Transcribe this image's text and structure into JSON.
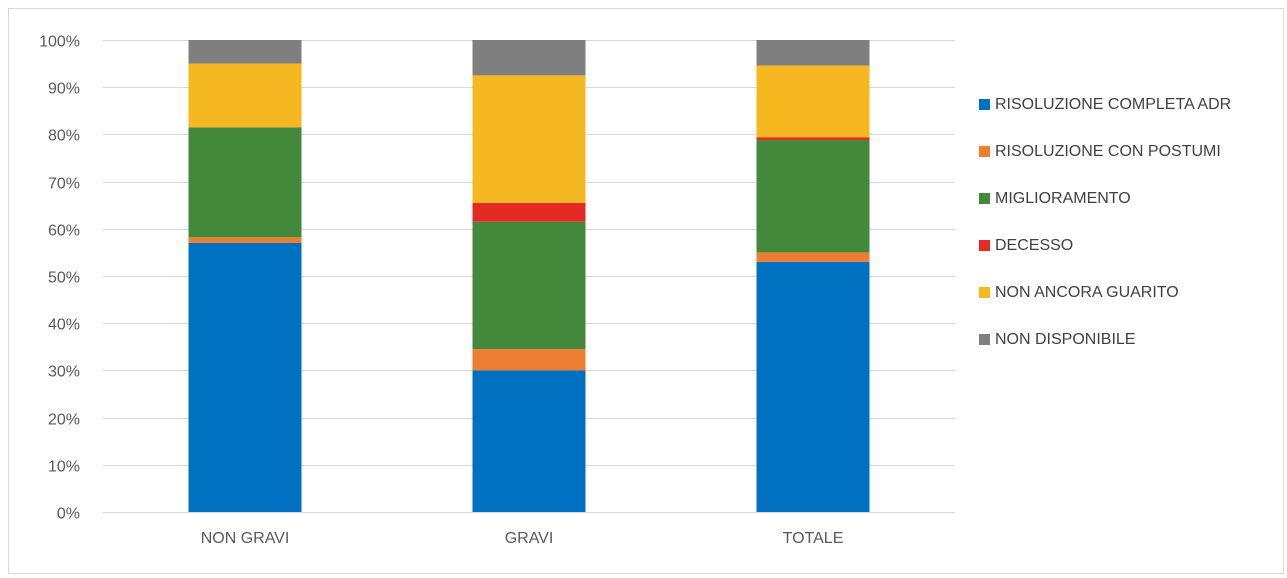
{
  "chart_data": {
    "type": "bar",
    "stacked": true,
    "percent": true,
    "categories": [
      "NON GRAVI",
      "GRAVI",
      "TOTALE"
    ],
    "series": [
      {
        "name": "RISOLUZIONE COMPLETA ADR",
        "color": "#0070C0",
        "values": [
          57,
          30,
          53
        ]
      },
      {
        "name": "RISOLUZIONE CON POSTUMI",
        "color": "#ED7D31",
        "values": [
          1.2,
          4.5,
          2
        ]
      },
      {
        "name": "MIGLIORAMENTO",
        "color": "#43883B",
        "values": [
          23.3,
          27,
          23.8
        ]
      },
      {
        "name": "DECESSO",
        "color": "#E32A23",
        "values": [
          0,
          4,
          0.6
        ]
      },
      {
        "name": "NON ANCORA GUARITO",
        "color": "#F5B820",
        "values": [
          13.5,
          27,
          15.2
        ]
      },
      {
        "name": "NON DISPONIBILE",
        "color": "#7F7F7F",
        "values": [
          5,
          7.5,
          5.4
        ]
      }
    ],
    "yticks": [
      "0%",
      "10%",
      "20%",
      "30%",
      "40%",
      "50%",
      "60%",
      "70%",
      "80%",
      "90%",
      "100%"
    ],
    "ylim": [
      0,
      100
    ],
    "grid": true,
    "legend_position": "right",
    "title": "",
    "xlabel": "",
    "ylabel": ""
  }
}
